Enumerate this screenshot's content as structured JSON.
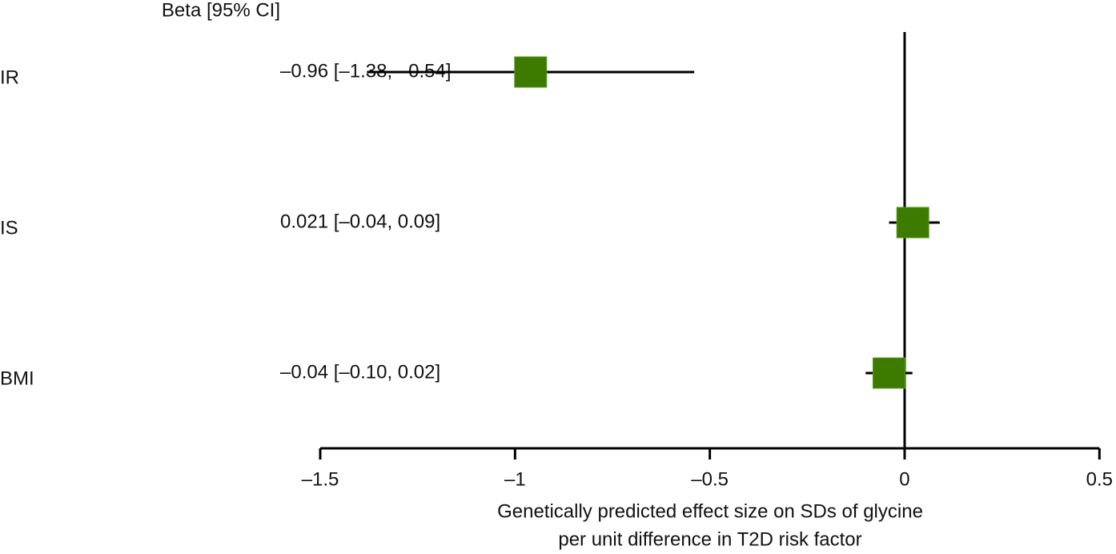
{
  "chart_data": {
    "type": "forest",
    "column_header": "Beta [95% CI]",
    "categories": [
      "IR",
      "IS",
      "BMI"
    ],
    "values": [
      -0.96,
      0.021,
      -0.04
    ],
    "lower": [
      -1.38,
      -0.04,
      -0.1
    ],
    "upper": [
      -0.54,
      0.09,
      0.02
    ],
    "value_labels": [
      "–0.96 [–1.38, –0.54]",
      "0.021 [–0.04, 0.09]",
      "–0.04 [–0.10, 0.02]"
    ],
    "color": "#3c7a00",
    "xlim": [
      -1.5,
      0.5
    ],
    "xticks": [
      {
        "value": -1.5,
        "label": "–1.5"
      },
      {
        "value": -1,
        "label": "–1"
      },
      {
        "value": -0.5,
        "label": "–0.5"
      },
      0,
      0.5
    ],
    "xlabel": [
      "Genetically predicted effect size on SDs of glycine",
      "per unit difference in T2D risk factor"
    ]
  }
}
